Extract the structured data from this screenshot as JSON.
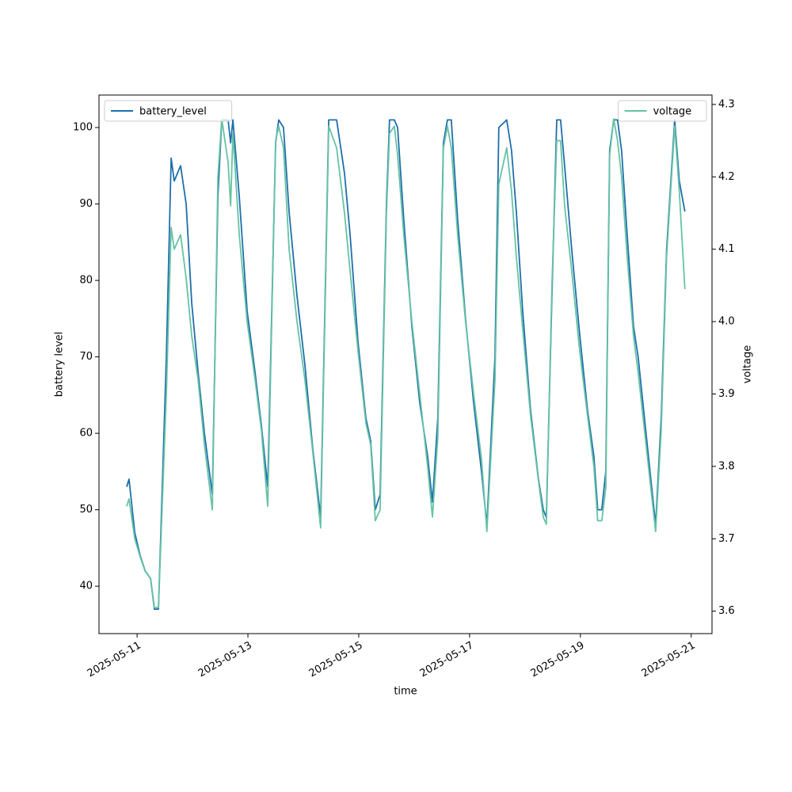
{
  "chart_data": {
    "type": "line",
    "x_label": "time",
    "y_label": "battery level",
    "y2_label": "voltage",
    "x": [
      "2025-05-10T19:30",
      "2025-05-10T20:30",
      "2025-05-10T23:00",
      "2025-05-11T01:20",
      "2025-05-11T03:30",
      "2025-05-11T05:50",
      "2025-05-11T07:30",
      "2025-05-11T09:15",
      "2025-05-11T12:40",
      "2025-05-11T14:45",
      "2025-05-11T16:05",
      "2025-05-11T18:50",
      "2025-05-11T21:15",
      "2025-05-11T23:40",
      "2025-05-12T02:25",
      "2025-05-12T05:10",
      "2025-05-12T08:35",
      "2025-05-12T11:00",
      "2025-05-12T12:40",
      "2025-05-12T15:25",
      "2025-05-12T16:30",
      "2025-05-12T17:30",
      "2025-05-12T20:15",
      "2025-05-12T23:40",
      "2025-05-13T03:05",
      "2025-05-13T05:50",
      "2025-05-13T08:35",
      "2025-05-13T12:00",
      "2025-05-13T13:20",
      "2025-05-13T15:25",
      "2025-05-13T17:50",
      "2025-05-13T21:15",
      "2025-05-14T00:40",
      "2025-05-14T04:05",
      "2025-05-14T07:30",
      "2025-05-14T11:00",
      "2025-05-14T14:25",
      "2025-05-14T17:50",
      "2025-05-14T20:15",
      "2025-05-14T23:40",
      "2025-05-15T03:05",
      "2025-05-15T05:10",
      "2025-05-15T07:10",
      "2025-05-15T09:15",
      "2025-05-15T12:00",
      "2025-05-15T13:20",
      "2025-05-15T15:25",
      "2025-05-15T16:50",
      "2025-05-15T19:30",
      "2025-05-15T23:00",
      "2025-05-16T02:25",
      "2025-05-16T05:50",
      "2025-05-16T07:55",
      "2025-05-16T10:15",
      "2025-05-16T12:40",
      "2025-05-16T14:25",
      "2025-05-16T16:05",
      "2025-05-16T18:50",
      "2025-05-16T22:15",
      "2025-05-17T01:45",
      "2025-05-17T05:10",
      "2025-05-17T07:30",
      "2025-05-17T11:00",
      "2025-05-17T12:40",
      "2025-05-17T16:05",
      "2025-05-17T18:10",
      "2025-05-17T20:15",
      "2025-05-17T23:00",
      "2025-05-18T02:25",
      "2025-05-18T05:50",
      "2025-05-18T07:55",
      "2025-05-18T09:15",
      "2025-05-18T11:40",
      "2025-05-18T13:45",
      "2025-05-18T15:25",
      "2025-05-18T17:10",
      "2025-05-18T20:15",
      "2025-05-18T23:40",
      "2025-05-19T03:05",
      "2025-05-19T05:50",
      "2025-05-19T07:30",
      "2025-05-19T09:15",
      "2025-05-19T11:00",
      "2025-05-19T12:40",
      "2025-05-19T14:25",
      "2025-05-19T16:05",
      "2025-05-19T17:50",
      "2025-05-19T20:15",
      "2025-05-19T23:00",
      "2025-05-20T01:00",
      "2025-05-20T04:05",
      "2025-05-20T06:30",
      "2025-05-20T08:35",
      "2025-05-20T11:00",
      "2025-05-20T13:20",
      "2025-05-20T16:50",
      "2025-05-20T18:50",
      "2025-05-20T21:15"
    ],
    "series": [
      {
        "name": "battery_level",
        "color": "#1f6fab",
        "values": [
          53,
          54,
          47,
          44,
          42,
          41,
          37,
          37,
          70,
          96,
          93,
          95,
          90,
          77,
          68,
          60,
          52,
          91,
          101,
          101,
          98,
          101,
          91,
          76,
          68,
          61,
          53,
          98,
          101,
          100,
          89,
          78,
          69,
          58,
          49,
          101,
          101,
          94,
          86,
          72,
          62,
          59,
          50,
          52,
          90,
          101,
          101,
          100,
          88,
          74,
          64,
          57,
          51,
          62,
          98,
          101,
          101,
          88,
          75,
          64,
          55,
          48,
          70,
          100,
          101,
          97,
          89,
          76,
          63,
          54,
          50,
          49,
          78,
          101,
          101,
          95,
          84,
          73,
          63,
          57,
          50,
          50,
          55,
          97,
          101,
          101,
          97,
          86,
          74,
          70,
          61,
          54,
          48,
          62,
          84,
          101,
          93,
          89
        ]
      },
      {
        "name": "voltage",
        "color": "#66c2a5",
        "axis": "y2",
        "values": [
          3.745,
          3.755,
          3.7,
          3.675,
          3.655,
          3.645,
          3.605,
          3.605,
          3.9,
          4.13,
          4.1,
          4.12,
          4.06,
          3.98,
          3.92,
          3.83,
          3.74,
          4.2,
          4.28,
          4.22,
          4.16,
          4.26,
          4.12,
          4.0,
          3.92,
          3.85,
          3.745,
          4.25,
          4.27,
          4.24,
          4.1,
          4.0,
          3.92,
          3.82,
          3.715,
          4.27,
          4.24,
          4.15,
          4.07,
          3.96,
          3.86,
          3.83,
          3.725,
          3.74,
          4.15,
          4.26,
          4.27,
          4.23,
          4.12,
          4.0,
          3.9,
          3.8,
          3.73,
          3.84,
          4.24,
          4.27,
          4.24,
          4.12,
          4.0,
          3.9,
          3.81,
          3.71,
          3.92,
          4.19,
          4.24,
          4.18,
          4.09,
          3.99,
          3.87,
          3.78,
          3.73,
          3.72,
          4.05,
          4.25,
          4.25,
          4.16,
          4.07,
          3.96,
          3.87,
          3.8,
          3.725,
          3.725,
          3.77,
          4.23,
          4.28,
          4.25,
          4.2,
          4.09,
          3.98,
          3.93,
          3.84,
          3.77,
          3.71,
          3.85,
          4.09,
          4.27,
          4.18,
          4.045
        ]
      }
    ],
    "xlim": [
      "2025-05-10T07:30",
      "2025-05-21T09:00"
    ],
    "xticks": [
      "2025-05-11",
      "2025-05-13",
      "2025-05-15",
      "2025-05-17",
      "2025-05-19",
      "2025-05-21"
    ],
    "ylim": [
      33.8,
      104.25
    ],
    "yticks": [
      40,
      50,
      60,
      70,
      80,
      90,
      100
    ],
    "y2lim": [
      3.569,
      4.313
    ],
    "y2ticks": [
      3.6,
      3.7,
      3.8,
      3.9,
      {
        "value": 4,
        "label": "4.0"
      },
      4.1,
      4.2,
      4.3
    ],
    "legend": "upper left",
    "legend2": "upper right"
  }
}
